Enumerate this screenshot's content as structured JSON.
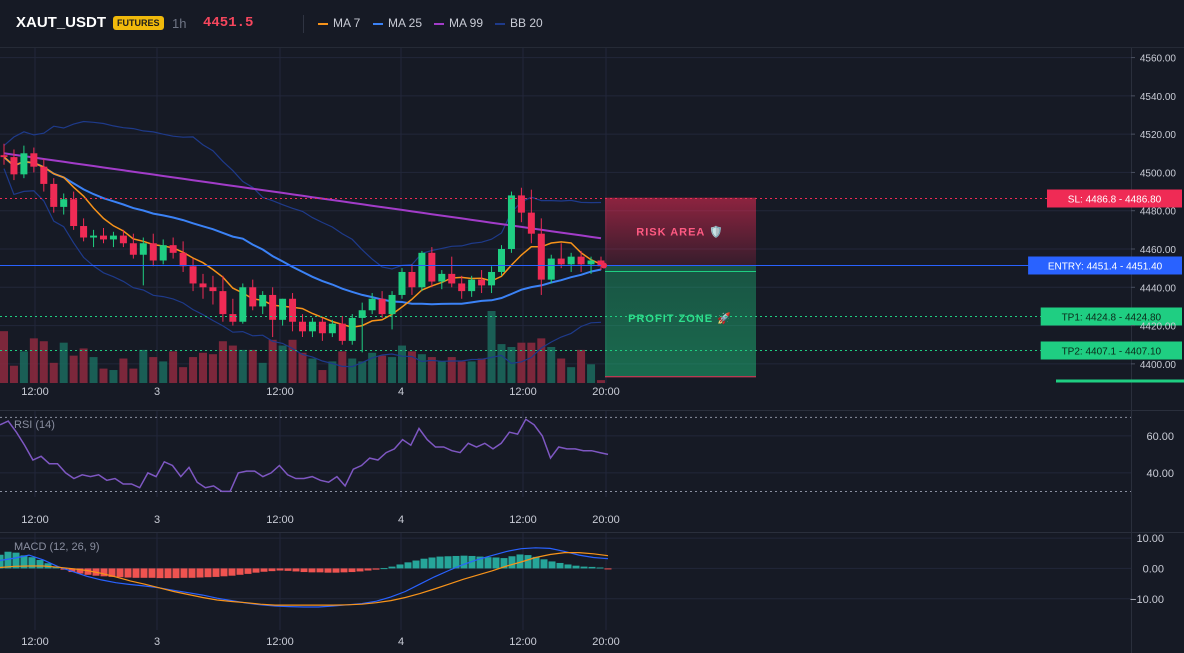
{
  "header": {
    "symbol": "XAUT_USDT",
    "badge": "FUTURES",
    "timeframe": "1h",
    "last_price": "4451.5",
    "legend": [
      {
        "label": "MA 7",
        "color": "#f7931a"
      },
      {
        "label": "MA 25",
        "color": "#3b82f6"
      },
      {
        "label": "MA 99",
        "color": "#a23cc9"
      },
      {
        "label": "BB 20",
        "color": "#1e3a8a"
      }
    ]
  },
  "colors": {
    "background": "#161a25",
    "up": "#1fce82",
    "down": "#ef2b55",
    "grid": "#22273a"
  },
  "chart_data": [
    {
      "type": "candlestick",
      "name": "price",
      "ylim": [
        4390,
        4565
      ],
      "y_ticks": [
        4560,
        4540,
        4520,
        4500,
        4480,
        4460,
        4440,
        4420,
        4400
      ],
      "x_ticks": [
        "12:00",
        "3",
        "12:00",
        "4",
        "12:00",
        "20:00"
      ],
      "candles": [
        [
          4509,
          4515,
          4504,
          4508
        ],
        [
          4508,
          4512,
          4496,
          4499
        ],
        [
          4499,
          4514,
          4497,
          4510
        ],
        [
          4510,
          4513,
          4500,
          4503
        ],
        [
          4503,
          4507,
          4490,
          4494
        ],
        [
          4494,
          4497,
          4479,
          4482
        ],
        [
          4482,
          4489,
          4478,
          4486
        ],
        [
          4486,
          4490,
          4470,
          4472
        ],
        [
          4472,
          4476,
          4464,
          4466
        ],
        [
          4466,
          4470,
          4461,
          4467
        ],
        [
          4467,
          4471,
          4463,
          4465
        ],
        [
          4465,
          4469,
          4461,
          4467
        ],
        [
          4467,
          4470,
          4461,
          4463
        ],
        [
          4463,
          4468,
          4455,
          4457
        ],
        [
          4457,
          4466,
          4441,
          4463
        ],
        [
          4463,
          4468,
          4451,
          4454
        ],
        [
          4454,
          4465,
          4452,
          4462
        ],
        [
          4462,
          4466,
          4455,
          4458
        ],
        [
          4458,
          4464,
          4448,
          4451
        ],
        [
          4451,
          4455,
          4438,
          4442
        ],
        [
          4442,
          4447,
          4434,
          4440
        ],
        [
          4440,
          4446,
          4431,
          4438
        ],
        [
          4438,
          4446,
          4422,
          4426
        ],
        [
          4426,
          4434,
          4420,
          4422
        ],
        [
          4422,
          4442,
          4421,
          4440
        ],
        [
          4440,
          4444,
          4428,
          4430
        ],
        [
          4430,
          4438,
          4426,
          4436
        ],
        [
          4436,
          4440,
          4414,
          4423
        ],
        [
          4423,
          4434,
          4420,
          4434
        ],
        [
          4434,
          4437,
          4417,
          4422
        ],
        [
          4422,
          4426,
          4414,
          4417
        ],
        [
          4417,
          4424,
          4414,
          4422
        ],
        [
          4422,
          4424,
          4412,
          4416
        ],
        [
          4416,
          4423,
          4414,
          4421
        ],
        [
          4421,
          4425,
          4410,
          4412
        ],
        [
          4412,
          4426,
          4410,
          4424
        ],
        [
          4424,
          4432,
          4406,
          4428
        ],
        [
          4428,
          4437,
          4426,
          4434
        ],
        [
          4434,
          4438,
          4424,
          4426
        ],
        [
          4426,
          4438,
          4418,
          4436
        ],
        [
          4436,
          4450,
          4434,
          4448
        ],
        [
          4448,
          4452,
          4436,
          4440
        ],
        [
          4440,
          4459,
          4438,
          4458
        ],
        [
          4458,
          4461,
          4440,
          4443
        ],
        [
          4443,
          4449,
          4439,
          4447
        ],
        [
          4447,
          4456,
          4440,
          4442
        ],
        [
          4442,
          4446,
          4434,
          4438
        ],
        [
          4438,
          4446,
          4435,
          4444
        ],
        [
          4444,
          4449,
          4437,
          4441
        ],
        [
          4441,
          4451,
          4437,
          4448
        ],
        [
          4448,
          4462,
          4446,
          4460
        ],
        [
          4460,
          4490,
          4458,
          4488
        ],
        [
          4488,
          4492,
          4474,
          4479
        ],
        [
          4479,
          4491,
          4463,
          4468
        ],
        [
          4468,
          4476,
          4436,
          4444
        ],
        [
          4444,
          4457,
          4442,
          4455
        ],
        [
          4455,
          4463,
          4450,
          4452
        ],
        [
          4452,
          4458,
          4448,
          4456
        ],
        [
          4456,
          4459,
          4448,
          4452
        ],
        [
          4452,
          4456,
          4447,
          4454
        ],
        [
          4454,
          4456,
          4449,
          4451
        ]
      ],
      "volume": [
        0.72,
        0.24,
        0.44,
        0.62,
        0.58,
        0.28,
        0.56,
        0.38,
        0.48,
        0.36,
        0.2,
        0.18,
        0.34,
        0.2,
        0.46,
        0.36,
        0.3,
        0.44,
        0.22,
        0.36,
        0.42,
        0.4,
        0.58,
        0.52,
        0.46,
        0.46,
        0.28,
        0.6,
        0.52,
        0.6,
        0.42,
        0.34,
        0.18,
        0.3,
        0.44,
        0.34,
        0.3,
        0.42,
        0.38,
        0.36,
        0.52,
        0.44,
        0.4,
        0.36,
        0.3,
        0.36,
        0.3,
        0.3,
        0.34,
        1.0,
        0.54,
        0.5,
        0.56,
        0.56,
        0.62,
        0.5,
        0.34,
        0.22,
        0.46,
        0.26,
        0.04
      ],
      "price_lines": [
        {
          "label": "SL: 4486.8",
          "axis_label": "4486.80",
          "value": 4486.8,
          "color": "#ef2b55",
          "style": "dotted"
        },
        {
          "label": "ENTRY: 4451.4",
          "axis_label": "4451.40",
          "value": 4451.4,
          "color": "#2962ff",
          "style": "solid"
        },
        {
          "label": "TP1: 4424.8",
          "axis_label": "4424.80",
          "value": 4424.8,
          "color": "#1fce82",
          "style": "dotted"
        },
        {
          "label": "TP2: 4407.1",
          "axis_label": "4407.10",
          "value": 4407.1,
          "color": "#1fce82",
          "style": "dotted"
        }
      ],
      "zones": [
        {
          "label": "RISK AREA 🛡️",
          "from": 4451.4,
          "to": 4486.8,
          "color": "#ef2b55"
        },
        {
          "label": "PROFIT ZONE 🚀",
          "from": 4393,
          "to": 4451.4,
          "color": "#1fce82"
        }
      ]
    },
    {
      "type": "line",
      "name": "RSI (14)",
      "ylim": [
        27,
        74
      ],
      "y_ticks": [
        60,
        40
      ],
      "bands": [
        70,
        30
      ],
      "x_ticks": [
        "12:00",
        "3",
        "12:00",
        "4",
        "12:00",
        "20:00"
      ],
      "values": [
        66,
        68,
        62,
        55,
        47,
        49,
        45,
        45,
        40,
        37,
        39,
        38,
        39,
        36,
        37,
        34,
        34,
        32,
        40,
        38,
        46,
        44,
        38,
        43,
        35,
        32,
        33,
        30,
        30,
        40,
        41,
        41,
        38,
        40,
        44,
        39,
        37,
        37,
        38,
        36,
        35,
        38,
        33,
        42,
        44,
        48,
        47,
        51,
        53,
        58,
        55,
        64,
        58,
        54,
        54,
        52,
        51,
        56,
        54,
        56,
        53,
        56,
        62,
        61,
        69,
        66,
        60,
        48,
        54,
        53,
        53,
        52,
        52,
        51,
        50
      ]
    },
    {
      "type": "bar+line",
      "name": "MACD (12, 26, 9)",
      "ylim": [
        -17,
        12
      ],
      "y_ticks": [
        10.0,
        0.0,
        -10.0
      ],
      "y_tick_labels": [
        "10.00",
        "0.00",
        "−10.00"
      ],
      "x_ticks": [
        "12:00",
        "3",
        "12:00",
        "4",
        "12:00",
        "20:00"
      ],
      "histogram": [
        4.5,
        5.5,
        5.2,
        4.3,
        3.7,
        2.8,
        1.7,
        0.6,
        -0.4,
        -1.2,
        -1.7,
        -2.1,
        -2.4,
        -2.6,
        -2.8,
        -2.9,
        -3.0,
        -3.1,
        -3.1,
        -3.1,
        -3.2,
        -3.2,
        -3.2,
        -3.1,
        -3.1,
        -3.0,
        -2.9,
        -2.8,
        -2.6,
        -2.4,
        -2.1,
        -1.8,
        -1.4,
        -1.1,
        -0.9,
        -0.7,
        -0.8,
        -1.0,
        -1.2,
        -1.3,
        -1.3,
        -1.4,
        -1.4,
        -1.3,
        -1.2,
        -1.0,
        -0.7,
        -0.4,
        0.1,
        0.6,
        1.3,
        2.0,
        2.6,
        3.2,
        3.6,
        3.9,
        4.0,
        4.1,
        4.2,
        4.1,
        3.9,
        3.7,
        3.6,
        3.4,
        4.0,
        4.6,
        4.4,
        3.8,
        3.0,
        2.3,
        1.8,
        1.3,
        0.9,
        0.6,
        0.5,
        0.3,
        -0.1
      ],
      "macd": [
        2.6,
        3.4,
        4.4,
        2.8,
        0.6,
        -1.0,
        -2.6,
        -3.8,
        -4.7,
        -5.3,
        -5.8,
        -6.4,
        -7.2,
        -8.0,
        -8.8,
        -9.8,
        -10.6,
        -11.4,
        -12.0,
        -12.4,
        -12.6,
        -12.7,
        -12.7,
        -12.4,
        -12.0,
        -11.6,
        -10.8,
        -9.4,
        -7.6,
        -5.2,
        -2.8,
        -0.7,
        1.3,
        2.9,
        4.3,
        5.6,
        6.5,
        6.8,
        6.6,
        5.6,
        4.4,
        3.6,
        3.2
      ],
      "signal": [
        0.3,
        0.7,
        0.8,
        0.8,
        0.4,
        -0.1,
        -0.7,
        -1.6,
        -2.8,
        -4.1,
        -5.2,
        -6.4,
        -7.6,
        -8.6,
        -9.6,
        -10.4,
        -10.9,
        -11.3,
        -11.8,
        -12.1,
        -12.1,
        -12.1,
        -12.1,
        -12.1,
        -12.0,
        -11.8,
        -11.3,
        -10.6,
        -9.6,
        -8.3,
        -6.8,
        -5.2,
        -3.6,
        -2.2,
        -0.8,
        0.8,
        2.1,
        3.6,
        4.6,
        5.2,
        5.2,
        4.8,
        4.2
      ]
    }
  ]
}
